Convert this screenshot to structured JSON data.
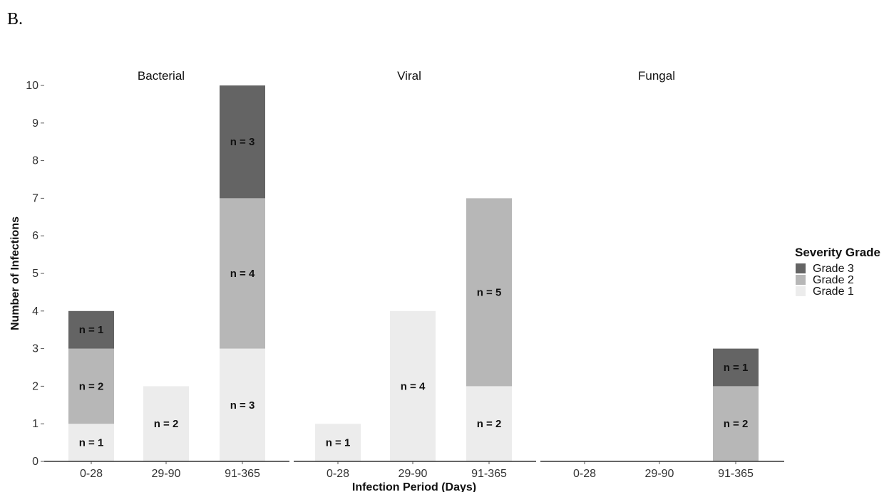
{
  "panel_label": "B.",
  "chart_data": {
    "type": "bar",
    "stacked": true,
    "ylabel": "Number of Infections",
    "xlabel": "Infection Period (Days)",
    "ylim": [
      0,
      10
    ],
    "yticks": [
      "0",
      "1",
      "2",
      "3",
      "4",
      "5",
      "6",
      "7",
      "8",
      "9",
      "10"
    ],
    "categories": [
      "0-28",
      "29-90",
      "91-365"
    ],
    "legend": {
      "title": "Severity Grade",
      "position": "right",
      "entries": [
        "Grade 3",
        "Grade 2",
        "Grade 1"
      ]
    },
    "colors": {
      "Grade 1": "#ececec",
      "Grade 2": "#b7b7b7",
      "Grade 3": "#646464"
    },
    "facets": [
      {
        "title": "Bacterial",
        "series": [
          {
            "name": "Grade 1",
            "values": [
              1,
              2,
              3
            ]
          },
          {
            "name": "Grade 2",
            "values": [
              2,
              0,
              4
            ]
          },
          {
            "name": "Grade 3",
            "values": [
              1,
              0,
              3
            ]
          }
        ],
        "labels": [
          [
            "n = 1",
            "n = 2",
            "n = 3"
          ],
          [
            "n = 2",
            "",
            "n = 4"
          ],
          [
            "n = 1",
            "",
            "n = 3"
          ]
        ]
      },
      {
        "title": "Viral",
        "series": [
          {
            "name": "Grade 1",
            "values": [
              1,
              4,
              2
            ]
          },
          {
            "name": "Grade 2",
            "values": [
              0,
              0,
              5
            ]
          },
          {
            "name": "Grade 3",
            "values": [
              0,
              0,
              0
            ]
          }
        ],
        "labels": [
          [
            "n = 1",
            "n = 4",
            "n = 2"
          ],
          [
            "",
            "",
            "n = 5"
          ],
          [
            "",
            "",
            ""
          ]
        ]
      },
      {
        "title": "Fungal",
        "series": [
          {
            "name": "Grade 1",
            "values": [
              0,
              0,
              0
            ]
          },
          {
            "name": "Grade 2",
            "values": [
              0,
              0,
              2
            ]
          },
          {
            "name": "Grade 3",
            "values": [
              0,
              0,
              1
            ]
          }
        ],
        "labels": [
          [
            "",
            "",
            ""
          ],
          [
            "",
            "",
            "n = 2"
          ],
          [
            "",
            "",
            "n = 1"
          ]
        ]
      }
    ]
  }
}
